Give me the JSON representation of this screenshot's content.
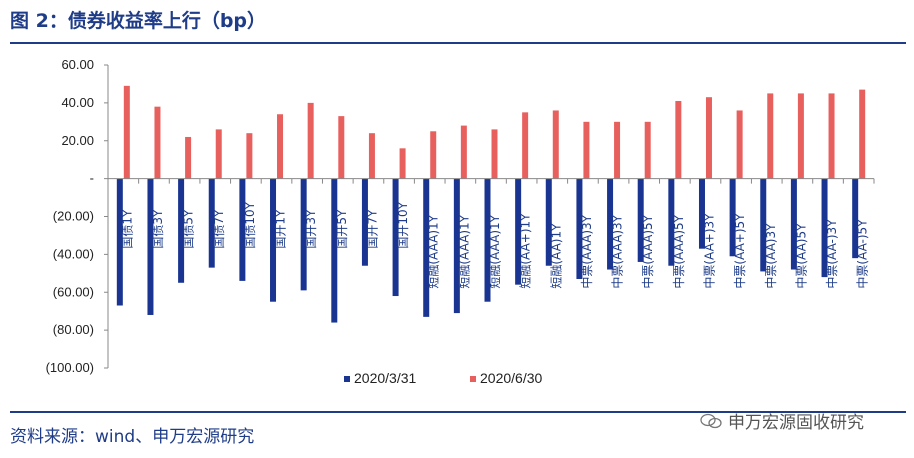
{
  "header": {
    "title": "图 2：债券收益率上行（bp）"
  },
  "footer": {
    "source": "资料来源：wind、申万宏源研究",
    "watermark": "申万宏源固收研究"
  },
  "colors": {
    "series1": "#1a3591",
    "series2": "#e8605d",
    "title": "#1f3c88"
  },
  "chart_data": {
    "type": "bar",
    "ylim": [
      -100,
      60
    ],
    "yticks": [
      60,
      40,
      20,
      0,
      -20,
      -40,
      -60,
      -80,
      -100
    ],
    "ytick_labels": [
      "60.00",
      "40.00",
      "20.00",
      "-",
      "(20.00)",
      "(40.00)",
      "(60.00)",
      "(80.00)",
      "(100.00)"
    ],
    "categories": [
      "国债1Y",
      "国债3Y",
      "国债5Y",
      "国债7Y",
      "国债10Y",
      "国开1Y",
      "国开3Y",
      "国开5Y",
      "国开7Y",
      "国开10Y",
      "短融(AAA)1Y",
      "短融(AAA)1Y",
      "短融(AAA)1Y",
      "短融(AA+)1Y",
      "短融(AA)1Y",
      "中票(AAA)3Y",
      "中票(AAA)3Y",
      "中票(AAA)5Y",
      "中票(AAA)5Y",
      "中票(AA+)3Y",
      "中票(AA+)5Y",
      "中票(AA)3Y",
      "中票(AA)5Y",
      "中票(AA-)3Y",
      "中票(AA-)5Y"
    ],
    "series": [
      {
        "name": "2020/3/31",
        "values": [
          -67,
          -72,
          -55,
          -47,
          -54,
          -65,
          -59,
          -76,
          -46,
          -62,
          -73,
          -71,
          -65,
          -56,
          -46,
          -53,
          -48,
          -44,
          -46,
          -37,
          -41,
          -49,
          -48,
          -52,
          -42
        ]
      },
      {
        "name": "2020/6/30",
        "values": [
          49,
          38,
          22,
          26,
          24,
          34,
          40,
          33,
          24,
          16,
          25,
          28,
          26,
          35,
          36,
          30,
          30,
          30,
          41,
          43,
          36,
          45,
          45,
          45,
          47
        ]
      }
    ],
    "legend_position": "bottom-center",
    "grid": false
  }
}
